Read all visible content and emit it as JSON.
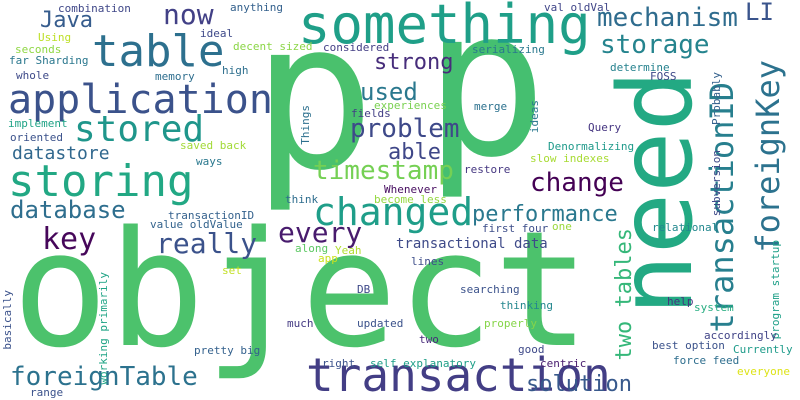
{
  "words": [
    {
      "text": "object",
      "color": "#4cc26c"
    },
    {
      "text": "p",
      "color": "#4ac16d"
    },
    {
      "text": "p",
      "color": "#45bf70"
    },
    {
      "text": "need",
      "color": "#23a983"
    },
    {
      "text": "something",
      "color": "#1f9f88"
    },
    {
      "text": "transaction",
      "color": "#433e85"
    },
    {
      "text": "table",
      "color": "#2d708e"
    },
    {
      "text": "application",
      "color": "#3b528b"
    },
    {
      "text": "storing",
      "color": "#22a884"
    },
    {
      "text": "stored",
      "color": "#1f968b"
    },
    {
      "text": "changed",
      "color": "#1f9e89"
    },
    {
      "text": "now",
      "color": "#424086"
    },
    {
      "text": "mechanism",
      "color": "#2f6c8e"
    },
    {
      "text": "storage",
      "color": "#25848e"
    },
    {
      "text": "transactionID",
      "color": "#277f8e"
    },
    {
      "text": "foreignKey",
      "color": "#2c728e"
    },
    {
      "text": "Java",
      "color": "#365c8d"
    },
    {
      "text": "strong",
      "color": "#472d7b"
    },
    {
      "text": "used",
      "color": "#2a788e"
    },
    {
      "text": "problem",
      "color": "#3e4989"
    },
    {
      "text": "able",
      "color": "#3f4788"
    },
    {
      "text": "timestamp",
      "color": "#75d054"
    },
    {
      "text": "datastore",
      "color": "#31688e"
    },
    {
      "text": "change",
      "color": "#440154"
    },
    {
      "text": "database",
      "color": "#2e6e8e"
    },
    {
      "text": "performance",
      "color": "#2a788e"
    },
    {
      "text": "key",
      "color": "#46075a"
    },
    {
      "text": "really",
      "color": "#3b528b"
    },
    {
      "text": "every",
      "color": "#481b6d"
    },
    {
      "text": "two tables",
      "color": "#35b779"
    },
    {
      "text": "foreignTable",
      "color": "#2c728e"
    },
    {
      "text": "solution",
      "color": "#38598c"
    },
    {
      "text": "transactional data",
      "color": "#3e4a89"
    },
    {
      "text": "combination",
      "color": "#3f4788"
    },
    {
      "text": "anything",
      "color": "#34618d"
    },
    {
      "text": "val oldVal",
      "color": "#404588"
    },
    {
      "text": "Using",
      "color": "#bddf26"
    },
    {
      "text": "ideal",
      "color": "#3e4989"
    },
    {
      "text": "seconds",
      "color": "#8fd744"
    },
    {
      "text": "decent sized",
      "color": "#8bd646"
    },
    {
      "text": "considered",
      "color": "#433e85"
    },
    {
      "text": "serializing",
      "color": "#2a788e"
    },
    {
      "text": "LI",
      "color": "#3a548c"
    },
    {
      "text": "far Sharding",
      "color": "#2a778e"
    },
    {
      "text": "determine",
      "color": "#26828e"
    },
    {
      "text": "whole",
      "color": "#3e4a89"
    },
    {
      "text": "memory",
      "color": "#2e6e8e"
    },
    {
      "text": "high",
      "color": "#2e6f8e"
    },
    {
      "text": "FOSS",
      "color": "#3e4989"
    },
    {
      "text": "experiences",
      "color": "#7ad151"
    },
    {
      "text": "merge",
      "color": "#2c718e"
    },
    {
      "text": "ideas",
      "color": "#2a788e"
    },
    {
      "text": "Probably",
      "color": "#34618d"
    },
    {
      "text": "implement",
      "color": "#20a386"
    },
    {
      "text": "oriented",
      "color": "#3b528b"
    },
    {
      "text": "Things",
      "color": "#2d708e"
    },
    {
      "text": "fields",
      "color": "#423f85"
    },
    {
      "text": "Query",
      "color": "#453581"
    },
    {
      "text": "saved back",
      "color": "#a2da37"
    },
    {
      "text": "Denormalizing",
      "color": "#1f9a8a"
    },
    {
      "text": "ways",
      "color": "#2a788e"
    },
    {
      "text": "slow indexes",
      "color": "#a8db34"
    },
    {
      "text": "restore",
      "color": "#453781"
    },
    {
      "text": "Whenever",
      "color": "#470d60"
    },
    {
      "text": "subversion",
      "color": "#3e4989"
    },
    {
      "text": "think",
      "color": "#2e6d8e"
    },
    {
      "text": "become less",
      "color": "#95d840"
    },
    {
      "text": "transactionID",
      "color": "#34618d"
    },
    {
      "text": "value oldValue",
      "color": "#33638d"
    },
    {
      "text": "first four",
      "color": "#3d4e8a"
    },
    {
      "text": "one",
      "color": "#9bd93c"
    },
    {
      "text": "relational",
      "color": "#23888e"
    },
    {
      "text": "program startup",
      "color": "#1fa088"
    },
    {
      "text": "along",
      "color": "#5cc863"
    },
    {
      "text": "Yeah",
      "color": "#b0dd2f"
    },
    {
      "text": "app",
      "color": "#cae11f"
    },
    {
      "text": "lines",
      "color": "#3d4d8a"
    },
    {
      "text": "basically",
      "color": "#3b528b"
    },
    {
      "text": "working primarily",
      "color": "#20a486"
    },
    {
      "text": "set",
      "color": "#c2df23"
    },
    {
      "text": "DB",
      "color": "#3e4989"
    },
    {
      "text": "searching",
      "color": "#3b528b"
    },
    {
      "text": "help",
      "color": "#46337f"
    },
    {
      "text": "system",
      "color": "#27ad81"
    },
    {
      "text": "thinking",
      "color": "#24878e"
    },
    {
      "text": "updated",
      "color": "#3b528b"
    },
    {
      "text": "much",
      "color": "#443a83"
    },
    {
      "text": "properly",
      "color": "#86d549"
    },
    {
      "text": "two",
      "color": "#472a7a"
    },
    {
      "text": "accordingly",
      "color": "#414487"
    },
    {
      "text": "pretty big",
      "color": "#34618d"
    },
    {
      "text": "best option",
      "color": "#3b528b"
    },
    {
      "text": "good",
      "color": "#3e4989"
    },
    {
      "text": "Currently",
      "color": "#1e9b8a"
    },
    {
      "text": "centric",
      "color": "#481c6e"
    },
    {
      "text": "force feed",
      "color": "#2e6e8e"
    },
    {
      "text": "right",
      "color": "#3b528b"
    },
    {
      "text": "self explanatory",
      "color": "#1f9f88"
    },
    {
      "text": "everyone",
      "color": "#dde318"
    },
    {
      "text": "range",
      "color": "#3b528b"
    }
  ]
}
